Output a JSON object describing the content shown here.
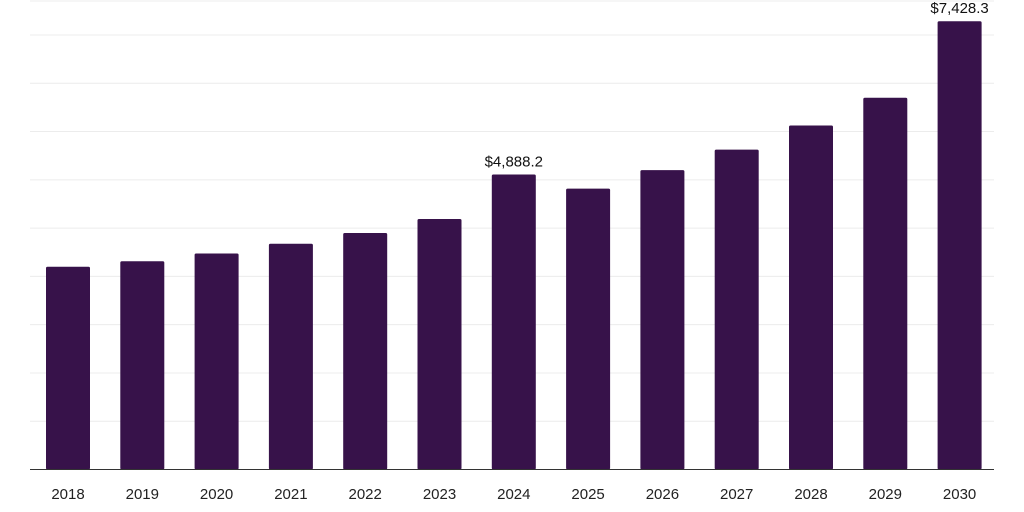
{
  "chart_data": {
    "type": "bar",
    "categories": [
      "2018",
      "2019",
      "2020",
      "2021",
      "2022",
      "2023",
      "2024",
      "2025",
      "2026",
      "2027",
      "2028",
      "2029",
      "2030"
    ],
    "values": [
      3360,
      3450,
      3580,
      3740,
      3920,
      4150,
      4888.2,
      4655,
      4960,
      5300,
      5700,
      6160,
      7428.3
    ],
    "data_labels": [
      {
        "category": "2024",
        "text": "$4,888.2"
      },
      {
        "category": "2030",
        "text": "$7,428.3"
      }
    ],
    "ylim": [
      0,
      7200
    ],
    "grid": true,
    "bar_color": "#37124a"
  }
}
